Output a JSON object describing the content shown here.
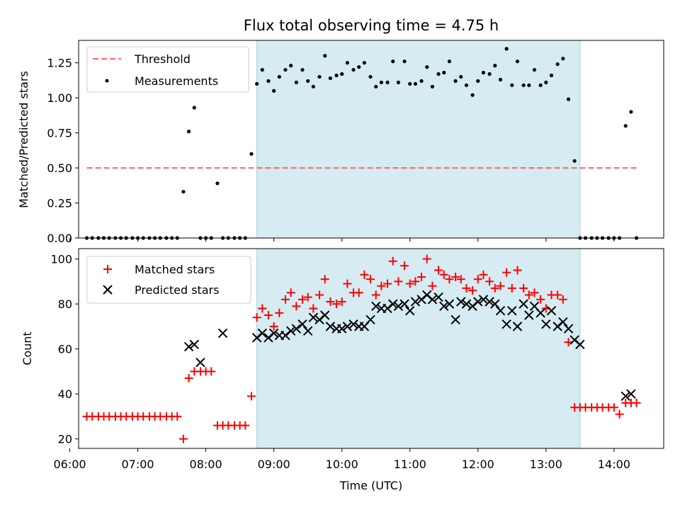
{
  "chart_data": [
    {
      "type": "scatter",
      "title": "Flux total observing time = 4.75 h",
      "ylabel": "Matched/Predicted stars",
      "xlim": [
        6.13,
        14.73
      ],
      "ylim": [
        0,
        1.41
      ],
      "yticks": [
        0.0,
        0.25,
        0.5,
        0.75,
        1.0,
        1.25
      ],
      "ytick_labels": [
        "0.00",
        "0.25",
        "0.50",
        "0.75",
        "1.00",
        "1.25"
      ],
      "highlight_span": [
        8.75,
        13.5
      ],
      "threshold": {
        "name": "Threshold",
        "value": 0.5,
        "x_range": [
          6.25,
          14.33
        ]
      },
      "series": [
        {
          "name": "Measurements",
          "x": [
            6.25,
            6.33,
            6.42,
            6.5,
            6.58,
            6.67,
            6.75,
            6.83,
            6.92,
            7.0,
            7.08,
            7.17,
            7.25,
            7.33,
            7.42,
            7.5,
            7.58,
            7.67,
            7.75,
            7.83,
            7.92,
            8.0,
            8.08,
            8.17,
            8.25,
            8.33,
            8.42,
            8.5,
            8.58,
            8.67,
            8.75,
            8.83,
            8.92,
            9.0,
            9.08,
            9.17,
            9.25,
            9.33,
            9.42,
            9.5,
            9.58,
            9.67,
            9.75,
            9.83,
            9.92,
            10.0,
            10.08,
            10.17,
            10.25,
            10.33,
            10.42,
            10.5,
            10.58,
            10.67,
            10.75,
            10.83,
            10.92,
            11.0,
            11.08,
            11.17,
            11.25,
            11.33,
            11.42,
            11.5,
            11.58,
            11.67,
            11.75,
            11.83,
            11.92,
            12.0,
            12.08,
            12.17,
            12.25,
            12.33,
            12.42,
            12.5,
            12.58,
            12.67,
            12.75,
            12.83,
            12.92,
            13.0,
            13.08,
            13.17,
            13.25,
            13.33,
            13.42,
            13.5,
            13.58,
            13.67,
            13.75,
            13.83,
            13.92,
            14.0,
            14.08,
            14.17,
            14.25,
            14.33
          ],
          "y": [
            0,
            0,
            0,
            0,
            0,
            0,
            0,
            0,
            0,
            0,
            0,
            0,
            0,
            0,
            0,
            0,
            0,
            0.33,
            0.76,
            0.93,
            0,
            0,
            0,
            0.39,
            0,
            0,
            0,
            0,
            0,
            0.6,
            1.1,
            1.2,
            1.12,
            1.05,
            1.15,
            1.2,
            1.23,
            1.11,
            1.2,
            1.12,
            1.08,
            1.15,
            1.3,
            1.14,
            1.16,
            1.17,
            1.25,
            1.2,
            1.22,
            1.25,
            1.15,
            1.08,
            1.11,
            1.11,
            1.26,
            1.11,
            1.26,
            1.1,
            1.1,
            1.12,
            1.22,
            1.08,
            1.17,
            1.18,
            1.26,
            1.12,
            1.15,
            1.09,
            1.02,
            1.12,
            1.18,
            1.17,
            1.23,
            1.13,
            1.35,
            1.09,
            1.26,
            1.09,
            1.09,
            1.2,
            1.09,
            1.11,
            1.16,
            1.24,
            1.28,
            0.99,
            0.55,
            0,
            0,
            0,
            0,
            0,
            0,
            0,
            0,
            0.8,
            0.9,
            0
          ]
        }
      ],
      "legend": {
        "position": "upper left",
        "entries": [
          "Threshold",
          "Measurements"
        ]
      },
      "colors": {
        "span": "#add8e6",
        "threshold": "#ff6666",
        "points": "#000000"
      }
    },
    {
      "type": "scatter",
      "ylabel": "Count",
      "xlabel": "Time (UTC)",
      "xlim": [
        6.13,
        14.73
      ],
      "ylim": [
        15.8,
        104.6
      ],
      "xticks": [
        6,
        7,
        8,
        9,
        10,
        11,
        12,
        13,
        14
      ],
      "xtick_labels": [
        "06:00",
        "07:00",
        "08:00",
        "09:00",
        "10:00",
        "11:00",
        "12:00",
        "13:00",
        "14:00"
      ],
      "yticks": [
        20,
        40,
        60,
        80,
        100
      ],
      "ytick_labels": [
        "20",
        "40",
        "60",
        "80",
        "100"
      ],
      "highlight_span": [
        8.75,
        13.5
      ],
      "series": [
        {
          "name": "Matched stars",
          "marker": "+",
          "x": [
            6.25,
            6.33,
            6.42,
            6.5,
            6.58,
            6.67,
            6.75,
            6.83,
            6.92,
            7.0,
            7.08,
            7.17,
            7.25,
            7.33,
            7.42,
            7.5,
            7.58,
            7.67,
            7.75,
            7.83,
            7.92,
            8.0,
            8.08,
            8.17,
            8.25,
            8.33,
            8.42,
            8.5,
            8.58,
            8.67,
            8.75,
            8.83,
            8.92,
            9.0,
            9.08,
            9.17,
            9.25,
            9.33,
            9.42,
            9.5,
            9.58,
            9.67,
            9.75,
            9.83,
            9.92,
            10.0,
            10.08,
            10.17,
            10.25,
            10.33,
            10.42,
            10.5,
            10.58,
            10.67,
            10.75,
            10.83,
            10.92,
            11.0,
            11.08,
            11.17,
            11.25,
            11.33,
            11.42,
            11.5,
            11.58,
            11.67,
            11.75,
            11.83,
            11.92,
            12.0,
            12.08,
            12.17,
            12.25,
            12.33,
            12.42,
            12.5,
            12.58,
            12.67,
            12.75,
            12.83,
            12.92,
            13.0,
            13.08,
            13.17,
            13.25,
            13.33,
            13.42,
            13.5,
            13.58,
            13.67,
            13.75,
            13.83,
            13.92,
            14.0,
            14.08,
            14.17,
            14.25,
            14.33
          ],
          "y": [
            30,
            30,
            30,
            30,
            30,
            30,
            30,
            30,
            30,
            30,
            30,
            30,
            30,
            30,
            30,
            30,
            30,
            20,
            47,
            50,
            50,
            50,
            50,
            26,
            26,
            26,
            26,
            26,
            26,
            39,
            74,
            78,
            75,
            70,
            76,
            82,
            85,
            79,
            82,
            83,
            78,
            84,
            91,
            81,
            80,
            81,
            89,
            85,
            85,
            93,
            91,
            84,
            88,
            89,
            99,
            90,
            97,
            89,
            90,
            92,
            100,
            88,
            95,
            93,
            91,
            92,
            91,
            87,
            86,
            91,
            93,
            90,
            87,
            88,
            94,
            87,
            95,
            87,
            84,
            85,
            82,
            78,
            84,
            84,
            82,
            63,
            34,
            34,
            34,
            34,
            34,
            34,
            34,
            34,
            31,
            36,
            36,
            36
          ]
        },
        {
          "name": "Predicted stars",
          "marker": "x",
          "x": [
            7.75,
            7.83,
            7.92,
            8.25,
            8.75,
            8.83,
            8.92,
            9.0,
            9.08,
            9.17,
            9.25,
            9.33,
            9.42,
            9.5,
            9.58,
            9.67,
            9.75,
            9.83,
            9.92,
            10.0,
            10.08,
            10.17,
            10.25,
            10.33,
            10.42,
            10.5,
            10.58,
            10.67,
            10.75,
            10.83,
            10.92,
            11.0,
            11.08,
            11.17,
            11.25,
            11.33,
            11.42,
            11.5,
            11.58,
            11.67,
            11.75,
            11.83,
            11.92,
            12.0,
            12.08,
            12.17,
            12.25,
            12.33,
            12.42,
            12.5,
            12.58,
            12.67,
            12.75,
            12.83,
            12.92,
            13.0,
            13.08,
            13.17,
            13.25,
            13.33,
            13.42,
            13.5,
            14.17,
            14.25
          ],
          "y": [
            61,
            62,
            54,
            67,
            65,
            67,
            65,
            67,
            66,
            66,
            68,
            69,
            71,
            68,
            74,
            73,
            75,
            70,
            69,
            69,
            70,
            71,
            70,
            70,
            73,
            79,
            78,
            78,
            80,
            79,
            80,
            77,
            81,
            82,
            84,
            82,
            83,
            79,
            80,
            73,
            81,
            80,
            79,
            81,
            82,
            81,
            80,
            77,
            71,
            77,
            70,
            80,
            75,
            79,
            76,
            71,
            77,
            70,
            72,
            69,
            64,
            62,
            39,
            40
          ]
        }
      ],
      "legend": {
        "position": "upper left",
        "entries": [
          "Matched stars",
          "Predicted stars"
        ]
      },
      "colors": {
        "span": "#add8e6",
        "matched": "#ff0000",
        "predicted": "#000000"
      }
    }
  ]
}
